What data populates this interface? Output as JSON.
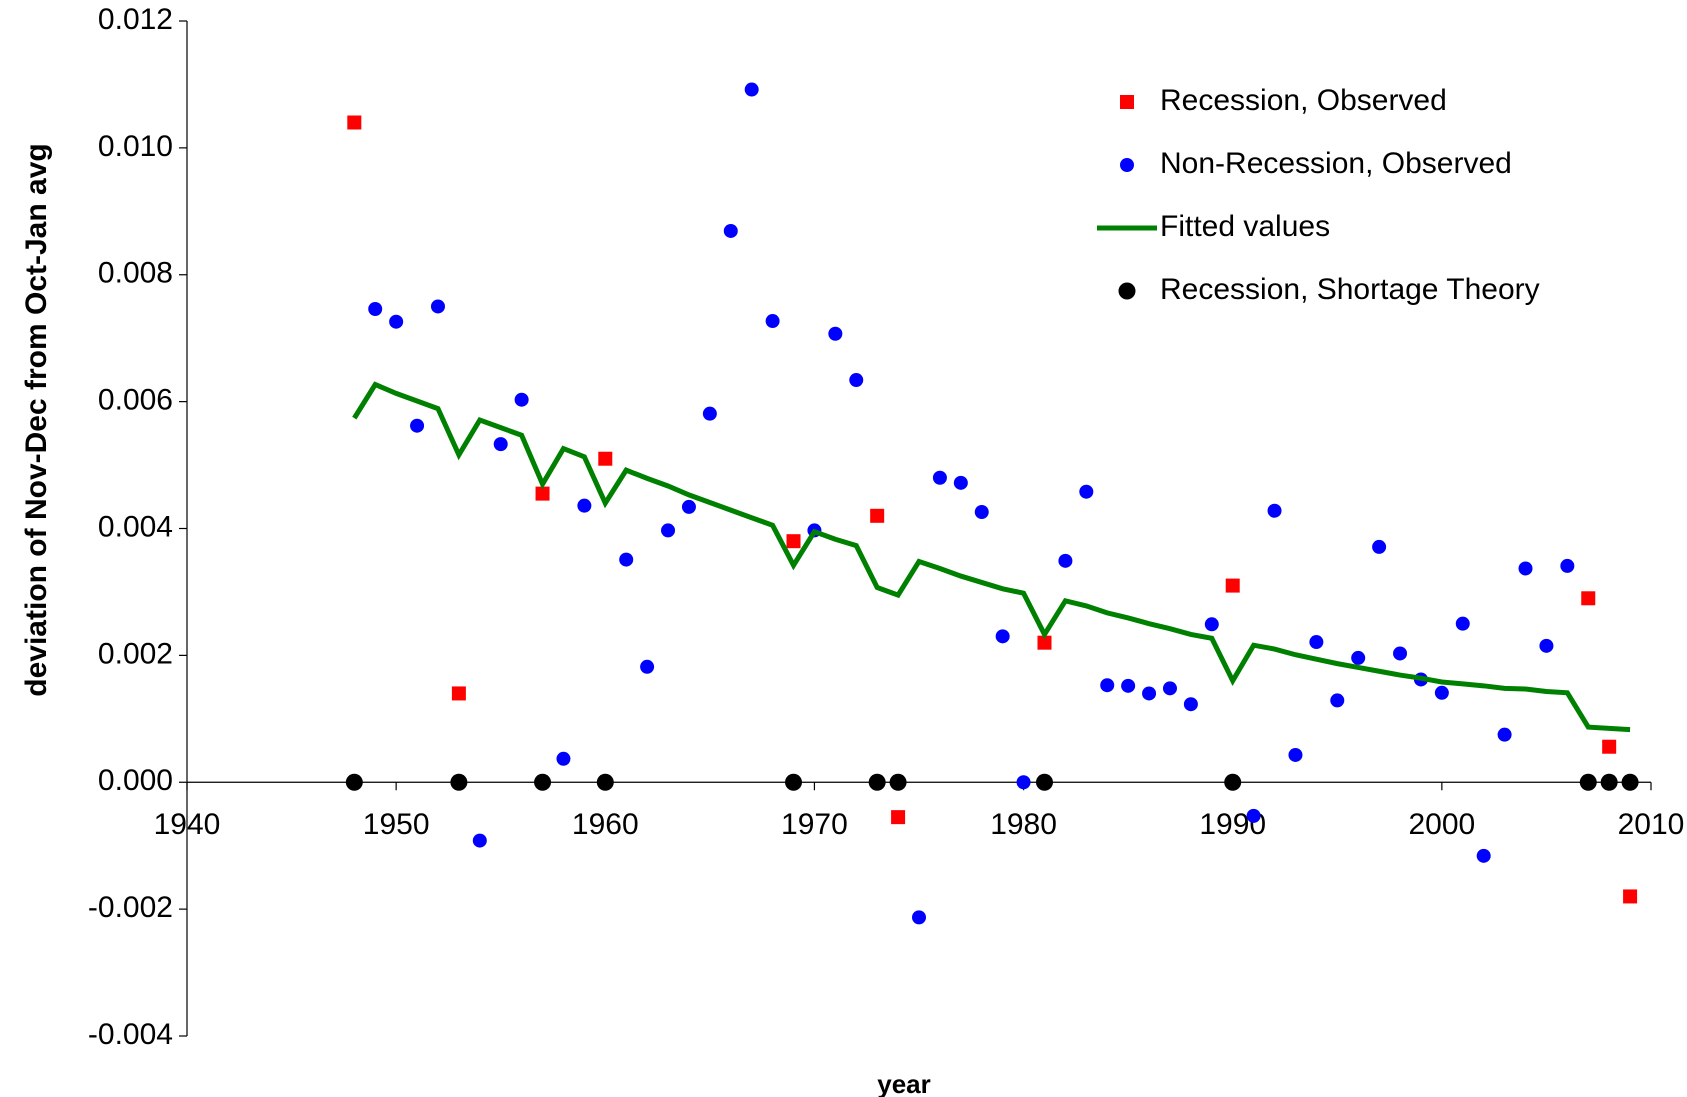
{
  "chart_data": {
    "type": "scatter",
    "x_label": "year",
    "y_label": "deviation of Nov-Dec from Oct-Jan avg",
    "xlim": [
      1940,
      2010
    ],
    "xticks": [
      1940,
      1950,
      1960,
      1970,
      1980,
      1990,
      2000,
      2010
    ],
    "ylim": [
      -0.004,
      0.012
    ],
    "yticks": [
      -0.004,
      -0.002,
      {
        "value": 0,
        "label": "0.000"
      },
      0.002,
      0.004,
      0.006,
      0.008,
      {
        "value": 0.01,
        "label": "0.010"
      },
      0.012
    ],
    "legend": "upper right",
    "series": [
      {
        "name": "Recession, Observed",
        "type": "scatter",
        "marker": "square",
        "color": "#ff0000",
        "x": [
          1948,
          1953,
          1957,
          1960,
          1969,
          1973,
          1974,
          1981,
          1990,
          2007,
          2008,
          2009
        ],
        "values": [
          0.0104,
          0.0014,
          0.00455,
          0.0051,
          0.0038,
          0.0042,
          -0.00055,
          0.0022,
          0.0031,
          0.0029,
          0.00056,
          -0.0018
        ]
      },
      {
        "name": "Non-Recession, Observed",
        "type": "scatter",
        "marker": "circle",
        "color": "#0000ff",
        "x": [
          1949,
          1950,
          1951,
          1952,
          1954,
          1955,
          1956,
          1958,
          1959,
          1961,
          1962,
          1963,
          1964,
          1965,
          1966,
          1967,
          1968,
          1970,
          1971,
          1972,
          1975,
          1976,
          1977,
          1978,
          1979,
          1980,
          1982,
          1983,
          1984,
          1985,
          1986,
          1987,
          1988,
          1989,
          1991,
          1992,
          1993,
          1994,
          1995,
          1996,
          1997,
          1998,
          1999,
          2000,
          2001,
          2002,
          2003,
          2004,
          2005,
          2006
        ],
        "values": [
          0.00746,
          0.00726,
          0.00562,
          0.0075,
          -0.00092,
          0.00533,
          0.00603,
          0.00037,
          0.00436,
          0.00351,
          0.00182,
          0.00397,
          0.00434,
          0.00581,
          0.00869,
          0.01092,
          0.00727,
          0.00397,
          0.00707,
          0.00634,
          -0.00213,
          0.0048,
          0.00472,
          0.00426,
          0.0023,
          0.0,
          0.00349,
          0.00458,
          0.00153,
          0.00152,
          0.0014,
          0.00148,
          0.00123,
          0.00249,
          -0.00053,
          0.00428,
          0.00043,
          0.00221,
          0.00129,
          0.00196,
          0.00371,
          0.00203,
          0.00162,
          0.00141,
          0.0025,
          -0.00116,
          0.00075,
          0.00337,
          0.00215,
          0.00341
        ]
      },
      {
        "name": "Fitted values",
        "type": "line",
        "color": "#008000",
        "x": [
          1948,
          1949,
          1950,
          1951,
          1952,
          1953,
          1954,
          1955,
          1956,
          1957,
          1958,
          1959,
          1960,
          1961,
          1962,
          1963,
          1964,
          1965,
          1966,
          1967,
          1968,
          1969,
          1970,
          1971,
          1972,
          1973,
          1974,
          1975,
          1976,
          1977,
          1978,
          1979,
          1980,
          1981,
          1982,
          1983,
          1984,
          1985,
          1986,
          1987,
          1988,
          1989,
          1990,
          1991,
          1992,
          1993,
          1994,
          1995,
          1996,
          1997,
          1998,
          1999,
          2000,
          2001,
          2002,
          2003,
          2004,
          2005,
          2006,
          2007,
          2008,
          2009
        ],
        "values": [
          0.00574,
          0.00627,
          0.00613,
          0.00601,
          0.00589,
          0.00516,
          0.00571,
          0.00559,
          0.00547,
          0.0047,
          0.00526,
          0.00513,
          0.0044,
          0.00492,
          0.00479,
          0.00467,
          0.00453,
          0.00441,
          0.00429,
          0.00417,
          0.00405,
          0.00342,
          0.00395,
          0.00383,
          0.00373,
          0.00307,
          0.00295,
          0.00348,
          0.00337,
          0.00325,
          0.00315,
          0.00305,
          0.00298,
          0.00233,
          0.00286,
          0.00278,
          0.00267,
          0.00259,
          0.0025,
          0.00242,
          0.00233,
          0.00227,
          0.0016,
          0.00216,
          0.0021,
          0.00201,
          0.00194,
          0.00187,
          0.00181,
          0.00175,
          0.00169,
          0.00164,
          0.00158,
          0.00155,
          0.00152,
          0.00148,
          0.00147,
          0.00143,
          0.00141,
          0.00087,
          0.00085,
          0.00083
        ]
      },
      {
        "name": "Recession, Shortage Theory",
        "type": "scatter",
        "marker": "circle",
        "color": "#000000",
        "x": [
          1948,
          1953,
          1957,
          1960,
          1969,
          1973,
          1974,
          1981,
          1990,
          2007,
          2008,
          2009
        ],
        "values": [
          0,
          0,
          0,
          0,
          0,
          0,
          0,
          0,
          0,
          0,
          0,
          0
        ]
      }
    ]
  }
}
